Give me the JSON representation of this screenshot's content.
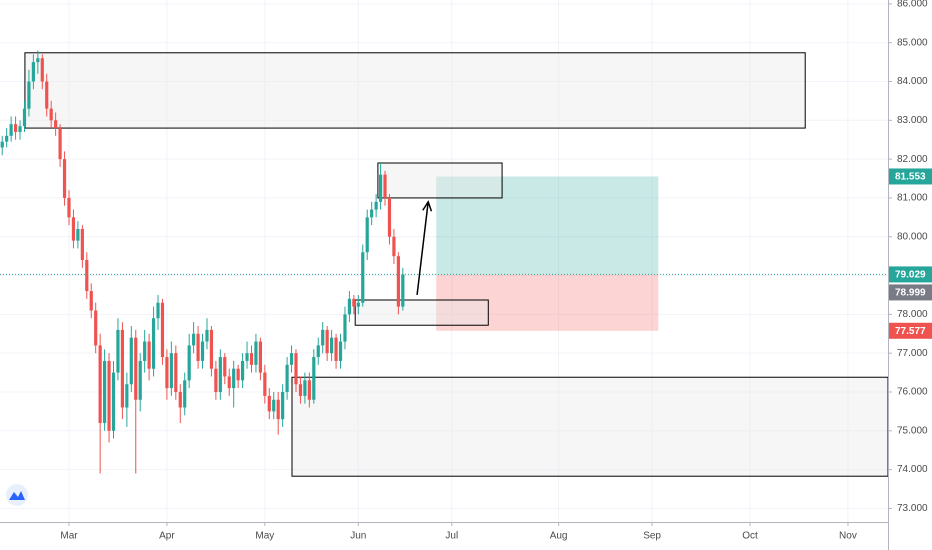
{
  "chart_data": {
    "type": "candlestick",
    "up_color": "#26a69a",
    "down_color": "#ef5350",
    "x": [
      -15,
      -14,
      -13,
      -12,
      -11,
      -10,
      -9,
      -8,
      -7,
      -6,
      -5,
      -4,
      -3,
      -2,
      -1,
      0,
      1,
      2,
      3,
      4,
      5,
      6,
      7,
      8,
      9,
      10,
      11,
      12,
      13,
      14,
      15,
      16,
      17,
      18,
      19,
      20,
      21,
      22,
      23,
      24,
      25,
      26,
      27,
      28,
      29,
      30,
      31,
      32,
      33,
      34,
      35,
      36,
      37,
      38,
      39,
      40,
      41,
      42,
      43,
      44,
      45,
      46,
      47,
      48,
      49,
      50,
      51,
      52,
      53,
      54,
      55,
      56,
      57,
      58,
      59,
      60,
      61,
      62,
      63,
      64,
      65,
      66,
      67,
      68,
      69,
      70,
      71,
      72,
      73,
      74,
      75
    ],
    "candles": [
      [
        82.3,
        82.6,
        82.1,
        82.45
      ],
      [
        82.45,
        82.8,
        82.3,
        82.6
      ],
      [
        82.6,
        83.1,
        82.45,
        82.9
      ],
      [
        82.9,
        83.1,
        82.5,
        82.7
      ],
      [
        82.7,
        83.0,
        82.5,
        82.85
      ],
      [
        82.85,
        83.5,
        82.7,
        83.3
      ],
      [
        83.3,
        84.3,
        83.1,
        84.0
      ],
      [
        84.0,
        84.7,
        83.8,
        84.5
      ],
      [
        84.5,
        84.8,
        84.2,
        84.6
      ],
      [
        84.6,
        84.7,
        83.8,
        84.0
      ],
      [
        84.0,
        84.2,
        83.1,
        83.3
      ],
      [
        83.3,
        83.5,
        82.8,
        83.0
      ],
      [
        83.0,
        83.2,
        82.6,
        82.8
      ],
      [
        82.8,
        82.9,
        81.8,
        82.0
      ],
      [
        82.0,
        82.2,
        80.8,
        81.0
      ],
      [
        81.0,
        81.2,
        80.3,
        80.5
      ],
      [
        80.5,
        80.7,
        79.7,
        79.9
      ],
      [
        79.9,
        80.4,
        79.7,
        80.2
      ],
      [
        80.2,
        80.3,
        79.2,
        79.4
      ],
      [
        79.4,
        79.6,
        78.4,
        78.6
      ],
      [
        78.6,
        78.8,
        77.9,
        78.1
      ],
      [
        78.1,
        78.3,
        77.0,
        77.2
      ],
      [
        77.2,
        77.5,
        73.9,
        75.2
      ],
      [
        75.2,
        77.1,
        75.0,
        76.8
      ],
      [
        76.8,
        77.0,
        74.7,
        75.0
      ],
      [
        75.0,
        76.8,
        74.8,
        76.5
      ],
      [
        76.5,
        77.9,
        76.3,
        77.6
      ],
      [
        77.6,
        77.8,
        75.3,
        75.6
      ],
      [
        75.6,
        76.5,
        75.1,
        76.2
      ],
      [
        76.2,
        77.7,
        76.0,
        77.4
      ],
      [
        77.4,
        77.6,
        73.9,
        75.8
      ],
      [
        75.8,
        77.0,
        75.5,
        76.8
      ],
      [
        76.8,
        77.6,
        76.5,
        77.3
      ],
      [
        77.3,
        77.5,
        76.3,
        76.6
      ],
      [
        76.6,
        78.2,
        76.4,
        77.9
      ],
      [
        77.9,
        78.5,
        77.6,
        78.3
      ],
      [
        78.3,
        78.4,
        76.7,
        76.9
      ],
      [
        76.9,
        77.1,
        75.8,
        76.1
      ],
      [
        76.1,
        77.3,
        75.9,
        77.0
      ],
      [
        77.0,
        77.2,
        75.8,
        76.0
      ],
      [
        76.0,
        76.2,
        75.2,
        75.6
      ],
      [
        75.6,
        76.5,
        75.4,
        76.3
      ],
      [
        76.3,
        77.5,
        76.1,
        77.2
      ],
      [
        77.2,
        77.8,
        77.0,
        77.5
      ],
      [
        77.5,
        77.7,
        76.6,
        76.8
      ],
      [
        76.8,
        77.5,
        76.6,
        77.3
      ],
      [
        77.3,
        77.9,
        77.1,
        77.6
      ],
      [
        77.6,
        77.7,
        76.4,
        76.6
      ],
      [
        76.6,
        76.8,
        75.8,
        76.0
      ],
      [
        76.0,
        77.1,
        75.8,
        76.9
      ],
      [
        76.9,
        77.0,
        76.2,
        76.4
      ],
      [
        76.4,
        76.6,
        75.9,
        76.1
      ],
      [
        76.1,
        76.8,
        75.6,
        76.6
      ],
      [
        76.6,
        76.7,
        76.1,
        76.3
      ],
      [
        76.3,
        77.0,
        76.1,
        76.8
      ],
      [
        76.8,
        77.3,
        76.6,
        77.0
      ],
      [
        77.0,
        77.2,
        76.5,
        76.7
      ],
      [
        76.7,
        77.5,
        76.5,
        77.3
      ],
      [
        77.3,
        77.4,
        76.3,
        76.5
      ],
      [
        76.5,
        76.7,
        75.7,
        75.9
      ],
      [
        75.9,
        76.1,
        75.3,
        75.5
      ],
      [
        75.5,
        76.0,
        75.3,
        75.8
      ],
      [
        75.8,
        76.0,
        74.9,
        75.3
      ],
      [
        75.3,
        76.2,
        75.1,
        76.0
      ],
      [
        76.0,
        76.9,
        75.8,
        76.7
      ],
      [
        76.7,
        77.2,
        76.5,
        77.0
      ],
      [
        77.0,
        77.1,
        76.0,
        76.2
      ],
      [
        76.2,
        76.4,
        75.7,
        75.9
      ],
      [
        75.9,
        76.5,
        75.7,
        76.3
      ],
      [
        76.3,
        76.5,
        75.6,
        75.8
      ],
      [
        75.8,
        77.1,
        75.7,
        76.9
      ],
      [
        76.9,
        77.4,
        76.7,
        77.2
      ],
      [
        77.2,
        77.8,
        77.0,
        77.6
      ],
      [
        77.6,
        77.7,
        76.8,
        77.0
      ],
      [
        77.0,
        77.6,
        76.8,
        77.4
      ],
      [
        77.4,
        77.5,
        76.6,
        76.8
      ],
      [
        76.8,
        77.5,
        76.6,
        77.3
      ],
      [
        77.3,
        78.2,
        77.1,
        78.0
      ],
      [
        78.0,
        78.6,
        77.8,
        78.4
      ],
      [
        78.4,
        78.5,
        78.0,
        78.2
      ],
      [
        78.2,
        78.5,
        78.0,
        78.3
      ],
      [
        78.3,
        79.8,
        78.2,
        79.6
      ],
      [
        79.6,
        80.7,
        79.4,
        80.5
      ],
      [
        80.5,
        80.9,
        80.3,
        80.7
      ],
      [
        80.7,
        81.1,
        80.5,
        80.9
      ],
      [
        80.9,
        81.9,
        80.7,
        81.6
      ],
      [
        81.6,
        81.7,
        80.8,
        81.0
      ],
      [
        81.0,
        81.1,
        79.8,
        80.0
      ],
      [
        80.0,
        80.2,
        79.3,
        79.5
      ],
      [
        79.5,
        79.6,
        78.0,
        78.2
      ],
      [
        78.2,
        79.2,
        78.1,
        79.029
      ]
    ],
    "xlim": [
      -15.5,
      184
    ],
    "xticks": [
      {
        "value": 0,
        "label": "Mar"
      },
      {
        "value": 22,
        "label": "Apr"
      },
      {
        "value": 44,
        "label": "May"
      },
      {
        "value": 65,
        "label": "Jun"
      },
      {
        "value": 86,
        "label": "Jul"
      },
      {
        "value": 110,
        "label": "Aug"
      },
      {
        "value": 131,
        "label": "Sep"
      },
      {
        "value": 153,
        "label": "Oct"
      },
      {
        "value": 175,
        "label": "Nov"
      }
    ],
    "ylim": [
      72.65,
      86.1
    ],
    "yticks": [
      {
        "value": 73,
        "label": "73.000"
      },
      {
        "value": 74,
        "label": "74.000"
      },
      {
        "value": 75,
        "label": "75.000"
      },
      {
        "value": 76,
        "label": "76.000"
      },
      {
        "value": 77,
        "label": "77.000"
      },
      {
        "value": 78,
        "label": "78.000"
      },
      {
        "value": 79,
        "label": "79.000"
      },
      {
        "value": 80,
        "label": "80.000"
      },
      {
        "value": 81,
        "label": "81.000"
      },
      {
        "value": 82,
        "label": "82.000"
      },
      {
        "value": 83,
        "label": "83.000"
      },
      {
        "value": 84,
        "label": "84.000"
      },
      {
        "value": 85,
        "label": "85.000"
      },
      {
        "value": 86,
        "label": "86.000"
      }
    ],
    "grid": true,
    "zones": [
      {
        "x": [
          -9.9,
          165.4
        ],
        "y": [
          82.8,
          84.74
        ]
      },
      {
        "x": [
          69.4,
          97.3
        ],
        "y": [
          81.0,
          81.9
        ]
      },
      {
        "x": [
          64.3,
          94.2
        ],
        "y": [
          77.72,
          78.37
        ]
      },
      {
        "x": [
          50.1,
          184
        ],
        "y": [
          73.83,
          76.38
        ]
      }
    ],
    "position": {
      "x": [
        82.5,
        132.4
      ],
      "entry": 79.029,
      "target": 81.553,
      "stop": 77.577,
      "target_color": "#26a69a",
      "stop_color": "#ef5350"
    },
    "arrow": {
      "x": [
        78.2,
        80.7
      ],
      "y": [
        78.5,
        80.9
      ]
    },
    "price_labels": [
      {
        "value": 81.553,
        "color": "#26a69a"
      },
      {
        "value": 79.029,
        "color": "#26a69a"
      },
      {
        "value": 78.999,
        "color": "#787b86"
      },
      {
        "value": 77.577,
        "color": "#ef5350"
      }
    ]
  }
}
